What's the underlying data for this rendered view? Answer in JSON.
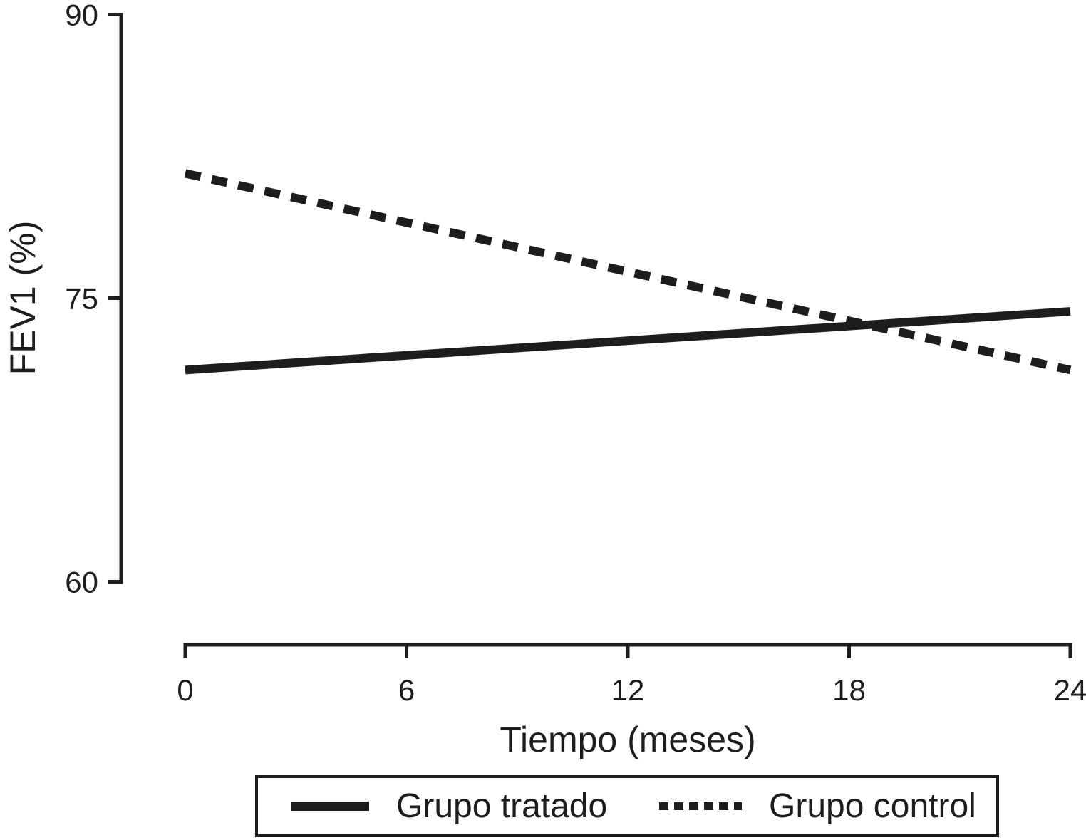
{
  "figure": {
    "background_color": "#ffffff",
    "ink_color": "#1d1d1b"
  },
  "axes": {
    "x_label": "Tiempo (meses)",
    "y_label": "FEV1 (%)"
  },
  "chart_data": {
    "type": "line",
    "title": "",
    "xlabel": "Tiempo (meses)",
    "ylabel": "FEV1 (%)",
    "xlim": [
      0,
      24
    ],
    "ylim": [
      60,
      90
    ],
    "xticks": [
      0,
      6,
      12,
      18,
      24
    ],
    "yticks": [
      90,
      75,
      60
    ],
    "grid": false,
    "legend_position": "bottom",
    "x": [
      0,
      24
    ],
    "series": [
      {
        "name": "Grupo tratado",
        "style": "solid",
        "values": [
          71.2,
          74.3
        ]
      },
      {
        "name": "Grupo control",
        "style": "dashed",
        "values": [
          81.6,
          71.2
        ]
      }
    ]
  },
  "legend": {
    "items": [
      {
        "label": "Grupo tratado",
        "style": "solid"
      },
      {
        "label": "Grupo control",
        "style": "dashed"
      }
    ]
  }
}
